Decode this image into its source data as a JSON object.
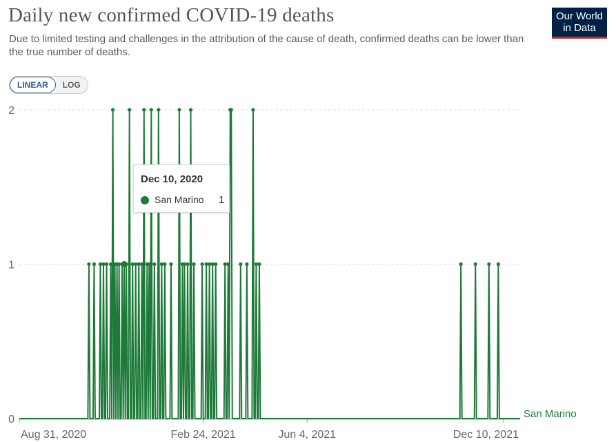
{
  "header": {
    "title": "Daily new confirmed COVID-19 deaths",
    "subtitle": "Due to limited testing and challenges in the attribution of the cause of death, confirmed deaths can be lower than the true number of deaths.",
    "logo_line1": "Our World",
    "logo_line2": "in Data"
  },
  "controls": {
    "linear_label": "LINEAR",
    "log_label": "LOG",
    "selected": "LINEAR"
  },
  "tooltip": {
    "date": "Dec 10, 2020",
    "series": "San Marino",
    "value": "1"
  },
  "colors": {
    "series": "#1d7a38",
    "grid": "#dddddd",
    "axis": "#555555"
  },
  "chart_data": {
    "type": "line",
    "title": "Daily new confirmed COVID-19 deaths",
    "xlabel": "",
    "ylabel": "",
    "ylim": [
      0,
      2
    ],
    "yticks": [
      "0",
      "1",
      "2"
    ],
    "xlim": [
      "2020-08-31",
      "2021-12-26"
    ],
    "xticks": [
      {
        "date": "2020-08-31",
        "label": "Aug 31, 2020"
      },
      {
        "date": "2021-02-24",
        "label": "Feb 24, 2021"
      },
      {
        "date": "2021-06-04",
        "label": "Jun 4, 2021"
      },
      {
        "date": "2021-12-10",
        "label": "Dec 10, 2021"
      }
    ],
    "grid": true,
    "legend": "right end label",
    "series": [
      {
        "name": "San Marino",
        "baseline": 0,
        "points": [
          {
            "date": "2020-11-06",
            "value": 1
          },
          {
            "date": "2020-11-11",
            "value": 1
          },
          {
            "date": "2020-11-17",
            "value": 1
          },
          {
            "date": "2020-11-20",
            "value": 1
          },
          {
            "date": "2020-11-23",
            "value": 1
          },
          {
            "date": "2020-11-27",
            "value": 1
          },
          {
            "date": "2020-11-29",
            "value": 2
          },
          {
            "date": "2020-12-01",
            "value": 1
          },
          {
            "date": "2020-12-03",
            "value": 1
          },
          {
            "date": "2020-12-05",
            "value": 1
          },
          {
            "date": "2020-12-08",
            "value": 1
          },
          {
            "date": "2020-12-10",
            "value": 1
          },
          {
            "date": "2020-12-12",
            "value": 1
          },
          {
            "date": "2020-12-15",
            "value": 2
          },
          {
            "date": "2020-12-18",
            "value": 1
          },
          {
            "date": "2020-12-21",
            "value": 1
          },
          {
            "date": "2020-12-24",
            "value": 1
          },
          {
            "date": "2020-12-27",
            "value": 1
          },
          {
            "date": "2020-12-29",
            "value": 2
          },
          {
            "date": "2021-01-01",
            "value": 1
          },
          {
            "date": "2021-01-03",
            "value": 1
          },
          {
            "date": "2021-01-05",
            "value": 2
          },
          {
            "date": "2021-01-08",
            "value": 1
          },
          {
            "date": "2021-01-12",
            "value": 2
          },
          {
            "date": "2021-01-15",
            "value": 1
          },
          {
            "date": "2021-01-18",
            "value": 1
          },
          {
            "date": "2021-01-24",
            "value": 1
          },
          {
            "date": "2021-02-01",
            "value": 2
          },
          {
            "date": "2021-02-04",
            "value": 1
          },
          {
            "date": "2021-02-06",
            "value": 1
          },
          {
            "date": "2021-02-09",
            "value": 1
          },
          {
            "date": "2021-02-12",
            "value": 2
          },
          {
            "date": "2021-02-15",
            "value": 1
          },
          {
            "date": "2021-02-23",
            "value": 1
          },
          {
            "date": "2021-02-27",
            "value": 1
          },
          {
            "date": "2021-03-02",
            "value": 1
          },
          {
            "date": "2021-03-05",
            "value": 1
          },
          {
            "date": "2021-03-08",
            "value": 1
          },
          {
            "date": "2021-03-17",
            "value": 1
          },
          {
            "date": "2021-03-20",
            "value": 1
          },
          {
            "date": "2021-03-22",
            "value": 2
          },
          {
            "date": "2021-03-23",
            "value": 2
          },
          {
            "date": "2021-04-01",
            "value": 1
          },
          {
            "date": "2021-04-07",
            "value": 1
          },
          {
            "date": "2021-04-13",
            "value": 2
          },
          {
            "date": "2021-04-16",
            "value": 1
          },
          {
            "date": "2021-04-19",
            "value": 1
          },
          {
            "date": "2021-10-30",
            "value": 1
          },
          {
            "date": "2021-11-13",
            "value": 1
          },
          {
            "date": "2021-11-26",
            "value": 1
          },
          {
            "date": "2021-12-05",
            "value": 1
          }
        ]
      }
    ]
  }
}
